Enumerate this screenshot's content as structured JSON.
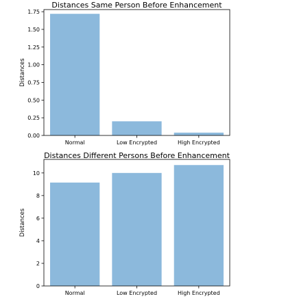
{
  "chart_data": [
    {
      "type": "bar",
      "title": "Distances Same Person Before Enhancement",
      "xlabel": "",
      "ylabel": "Distances",
      "categories": [
        "Normal",
        "Low Encrypted",
        "High Encrypted"
      ],
      "values": [
        1.72,
        0.2,
        0.04
      ],
      "ylim": [
        0,
        1.78
      ],
      "yticks": [
        0.0,
        0.25,
        0.5,
        0.75,
        1.0,
        1.25,
        1.5,
        1.75
      ],
      "ytick_labels": [
        "0.00",
        "0.25",
        "0.50",
        "0.75",
        "1.00",
        "1.25",
        "1.50",
        "1.75"
      ],
      "bar_color": "#8cb9dc",
      "grid": false
    },
    {
      "type": "bar",
      "title": "Distances Different Persons Before Enhancement",
      "xlabel": "",
      "ylabel": "Distances",
      "categories": [
        "Normal",
        "Low Encrypted",
        "High Encrypted"
      ],
      "values": [
        9.15,
        10.0,
        10.7
      ],
      "ylim": [
        0,
        11.2
      ],
      "yticks": [
        0,
        2,
        4,
        6,
        8,
        10
      ],
      "ytick_labels": [
        "0",
        "2",
        "4",
        "6",
        "8",
        "10"
      ],
      "bar_color": "#8cb9dc",
      "grid": false
    }
  ]
}
